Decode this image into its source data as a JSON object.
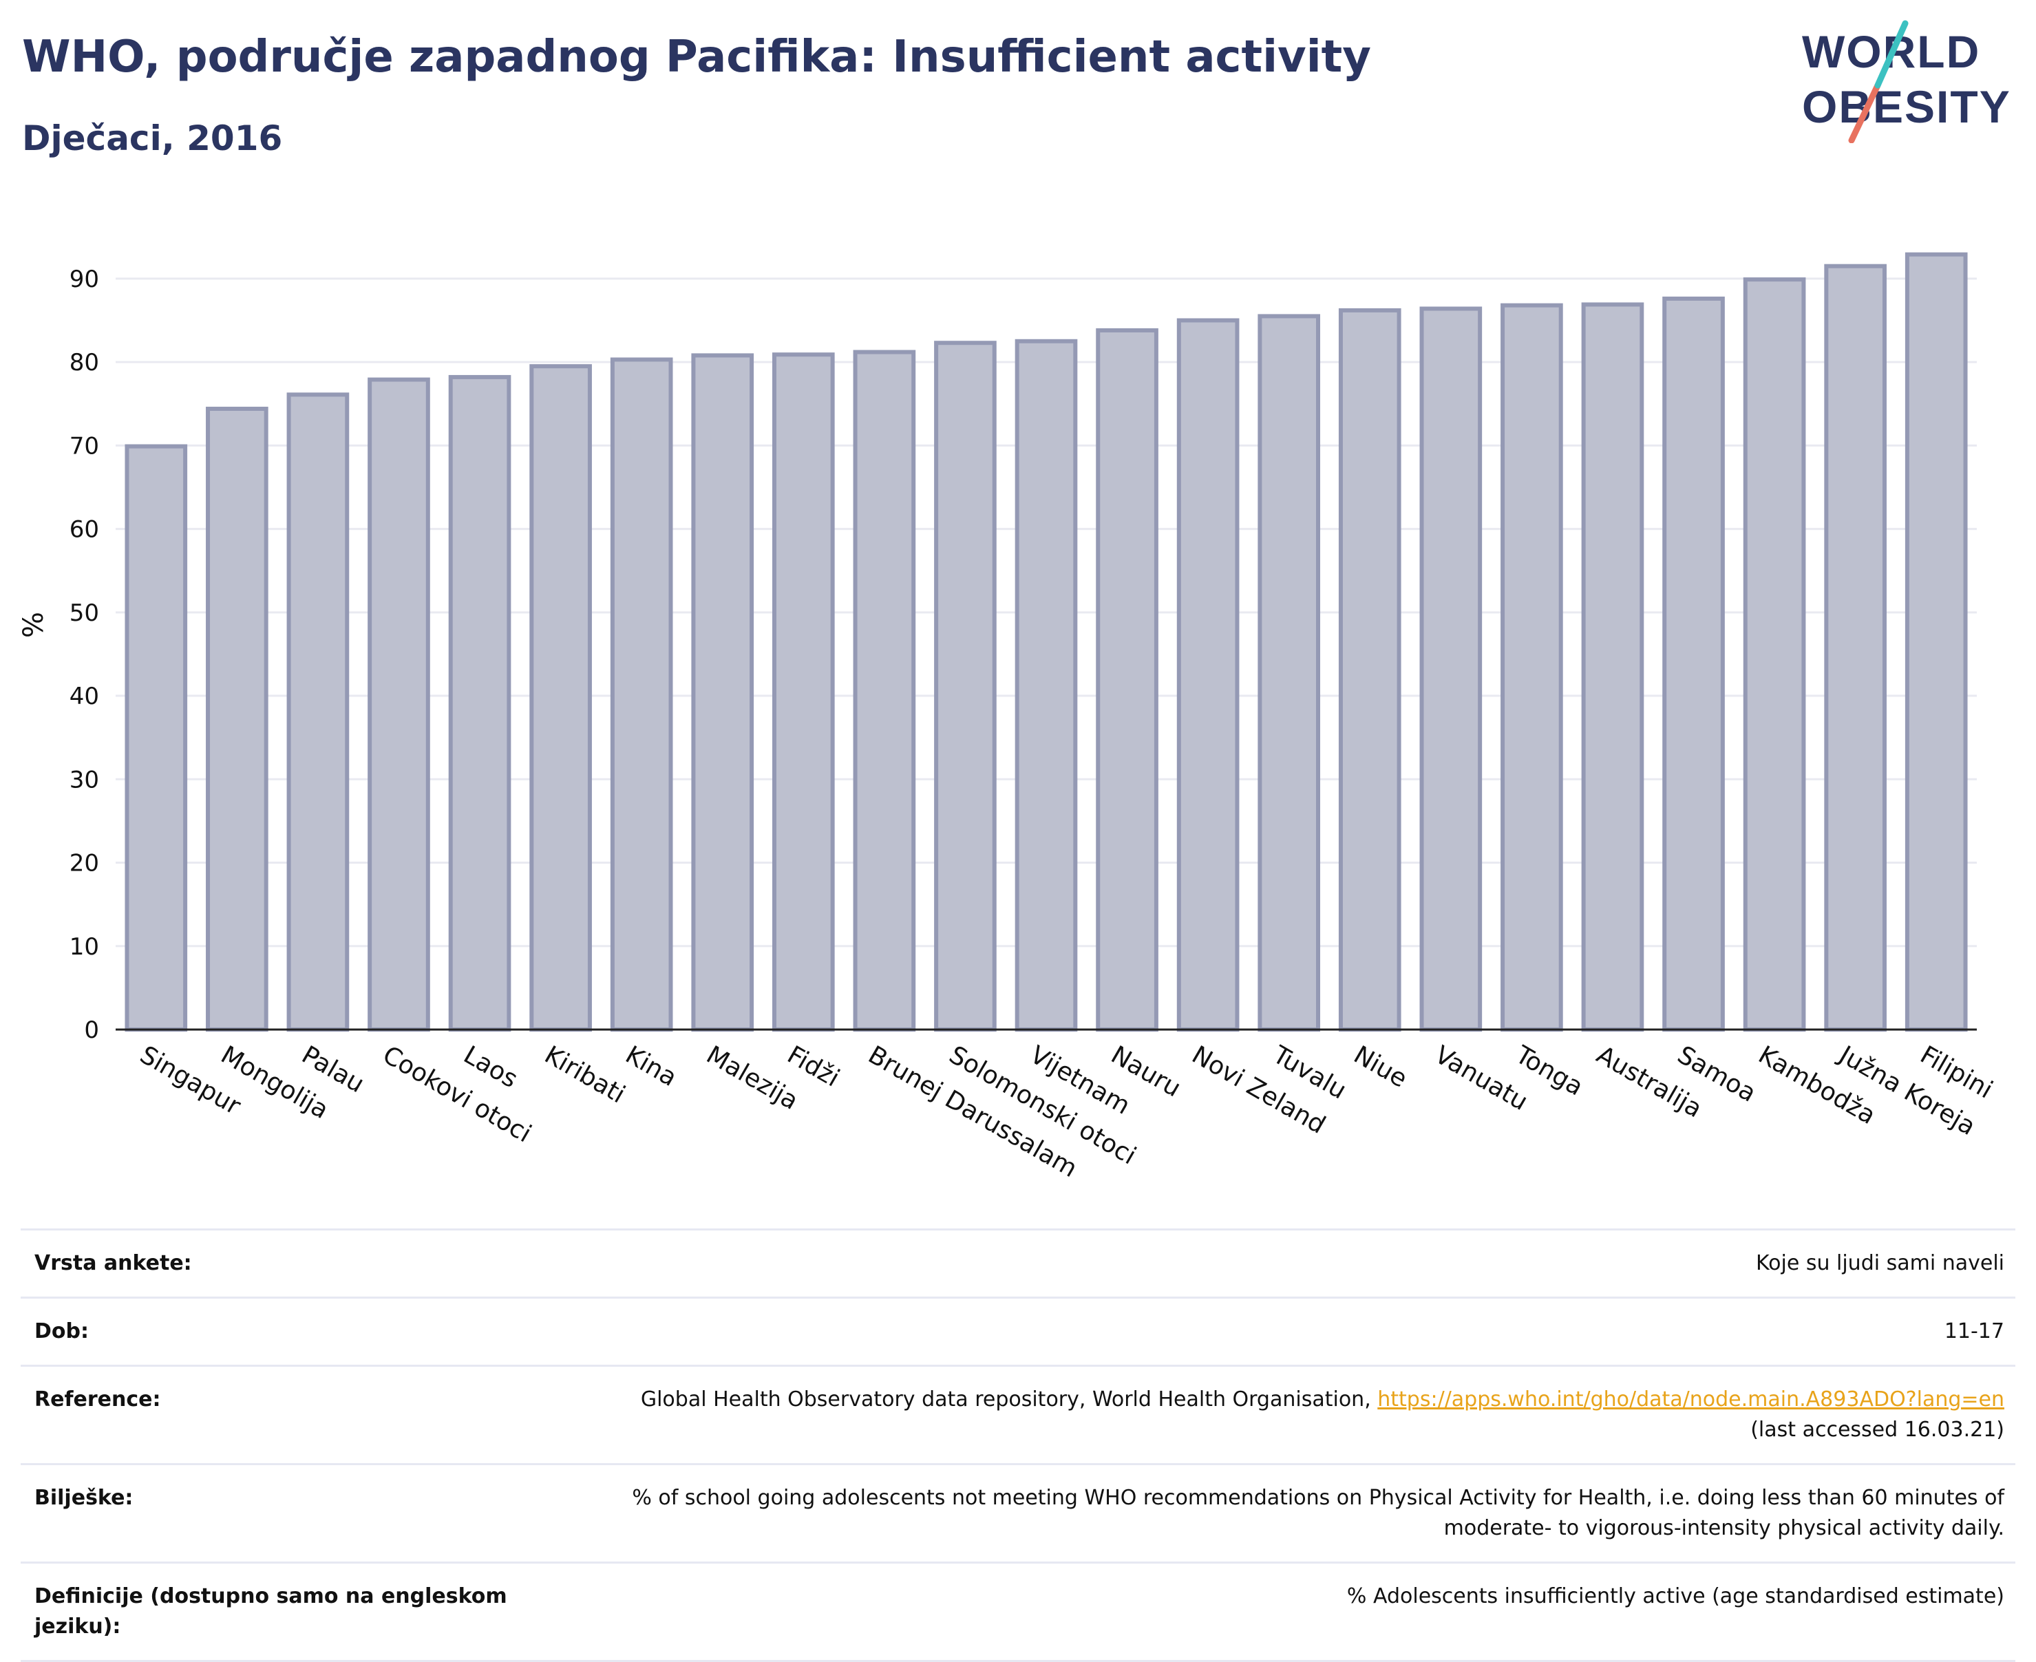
{
  "header": {
    "title": "WHO, područje zapadnog Pacifika: Insufficient activity",
    "subtitle": "Dječaci, 2016"
  },
  "logo": {
    "line1": "WORLD",
    "line2": "OBESITY",
    "colors": {
      "navy": "#2b3561",
      "teal": "#3cc1c1",
      "coral": "#e8725f"
    }
  },
  "chart_data": {
    "type": "bar",
    "title": "WHO, područje zapadnog Pacifika: Insufficient activity",
    "subtitle": "Dječaci, 2016",
    "ylabel": "%",
    "xlabel": "",
    "ylim": [
      0,
      97
    ],
    "yticks": [
      0,
      10,
      20,
      30,
      40,
      50,
      60,
      70,
      80,
      90
    ],
    "grid": true,
    "legend": "none",
    "bar_fill": "#bdc0cf",
    "bar_stroke": "#9499b4",
    "categories": [
      "Singapur",
      "Mongolija",
      "Palau",
      "Cookovi otoci",
      "Laos",
      "Kiribati",
      "Kina",
      "Malezija",
      "Fidži",
      "Brunej Darussalam",
      "Solomonski otoci",
      "Vijetnam",
      "Nauru",
      "Novi Zeland",
      "Tuvalu",
      "Niue",
      "Vanuatu",
      "Tonga",
      "Australija",
      "Samoa",
      "Kambodža",
      "Južna Koreja",
      "Filipini"
    ],
    "values": [
      69.9,
      74.4,
      76.1,
      77.9,
      78.2,
      79.5,
      80.3,
      80.8,
      80.9,
      81.2,
      82.3,
      82.5,
      83.8,
      85.0,
      85.5,
      86.2,
      86.4,
      86.8,
      86.9,
      87.6,
      89.9,
      91.5,
      92.9
    ]
  },
  "meta": {
    "survey_label": "Vrsta ankete:",
    "survey_value": "Koje su ljudi sami naveli",
    "age_label": "Dob:",
    "age_value": "11-17",
    "reference_label": "Reference:",
    "reference_text": "Global Health Observatory data repository, World Health Organisation, ",
    "reference_link": "https://apps.who.int/gho/data/node.main.A893ADO?lang=en",
    "reference_accessed": "(last accessed 16.03.21)",
    "notes_label": "Bilješke:",
    "notes_line1": "% of school going adolescents not meeting WHO recommendations on Physical Activity for Health, i.e. doing less than 60 minutes of",
    "notes_line2": "moderate- to vigorous-intensity physical activity daily.",
    "definitions_label": "Definicije (dostupno samo na engleskom jeziku):",
    "definitions_value": "% Adolescents insufficiently active (age standardised estimate)"
  }
}
